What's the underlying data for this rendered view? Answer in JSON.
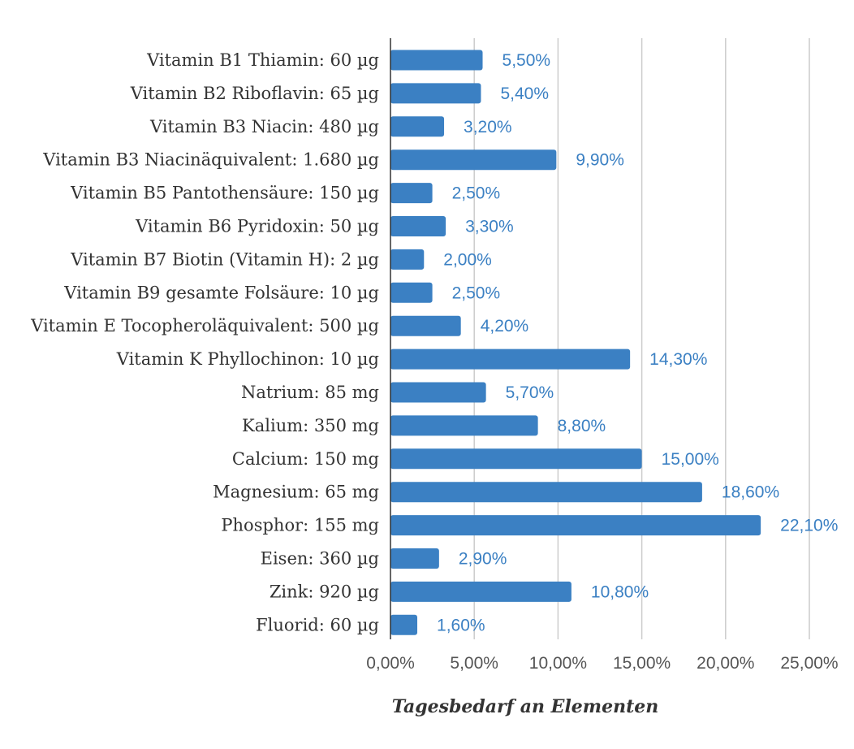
{
  "chart_data": {
    "type": "bar",
    "orientation": "horizontal",
    "title": "",
    "xlabel": "Tagesbedarf an Elementen",
    "ylabel": "",
    "xlim": [
      0,
      25
    ],
    "grid": true,
    "legend": "none",
    "categories": [
      "Vitamin B1 Thiamin: 60 µg",
      "Vitamin B2 Riboflavin: 65 µg",
      "Vitamin B3 Niacin: 480 µg",
      "Vitamin B3 Niacinäquivalent: 1.680 µg",
      "Vitamin B5 Pantothensäure: 150 µg",
      "Vitamin B6 Pyridoxin: 50 µg",
      "Vitamin B7 Biotin (Vitamin H): 2 µg",
      "Vitamin B9 gesamte Folsäure: 10 µg",
      "Vitamin E Tocopheroläquivalent: 500 µg",
      "Vitamin K Phyllochinon: 10 µg",
      "Natrium: 85 mg",
      "Kalium: 350 mg",
      "Calcium: 150 mg",
      "Magnesium: 65 mg",
      "Phosphor: 155 mg",
      "Eisen: 360 µg",
      "Zink: 920 µg",
      "Fluorid: 60 µg"
    ],
    "values": [
      5.5,
      5.4,
      3.2,
      9.9,
      2.5,
      3.3,
      2.0,
      2.5,
      4.2,
      14.3,
      5.7,
      8.8,
      15.0,
      18.6,
      22.1,
      2.9,
      10.8,
      1.6
    ],
    "data_labels": [
      "5,50%",
      "5,40%",
      "3,20%",
      "9,90%",
      "2,50%",
      "3,30%",
      "2,00%",
      "2,50%",
      "4,20%",
      "14,30%",
      "5,70%",
      "8,80%",
      "15,00%",
      "18,60%",
      "22,10%",
      "2,90%",
      "10,80%",
      "1,60%"
    ],
    "ticks": [
      0,
      5,
      10,
      15,
      20,
      25
    ],
    "tick_labels": [
      "0,00%",
      "5,00%",
      "10,00%",
      "15,00%",
      "20,00%",
      "25,00%"
    ],
    "colors": {
      "bar": "#3b80c3",
      "data_label": "#3b80c3",
      "grid": "#cccccc",
      "axis": "#333333"
    }
  }
}
